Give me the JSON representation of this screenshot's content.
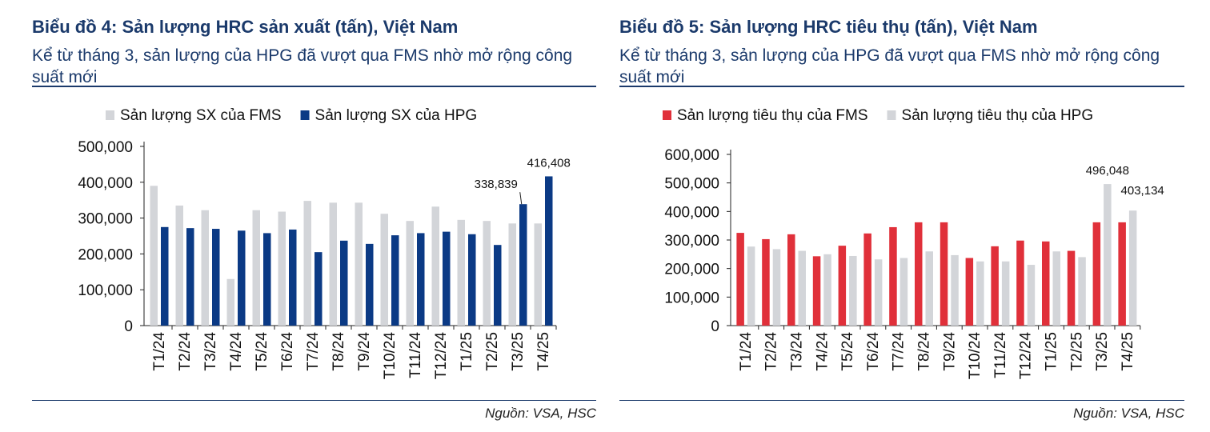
{
  "charts": [
    {
      "title": "Biểu đồ 4: Sản lượng HRC sản xuất (tấn), Việt Nam",
      "subtitle": "Kể từ tháng 3, sản lượng của HPG đã vượt qua FMS nhờ mở rộng công suất mới",
      "source": "Nguồn: VSA, HSC"
    },
    {
      "title": "Biểu đồ 5: Sản lượng HRC tiêu thụ (tấn), Việt Nam",
      "subtitle": "Kể từ tháng 3, sản lượng của HPG đã vượt qua FMS nhờ mở rộng công suất mới",
      "source": "Nguồn: VSA, HSC"
    }
  ],
  "chart_data": [
    {
      "type": "bar",
      "title": "Biểu đồ 4: Sản lượng HRC sản xuất (tấn), Việt Nam",
      "xlabel": "",
      "ylabel": "",
      "ylim": [
        0,
        500000
      ],
      "yticks": [
        "0",
        "100,000",
        "200,000",
        "300,000",
        "400,000",
        "500,000"
      ],
      "grid": false,
      "legend_position": "top",
      "categories": [
        "T1/24",
        "T2/24",
        "T3/24",
        "T4/24",
        "T5/24",
        "T6/24",
        "T7/24",
        "T8/24",
        "T9/24",
        "T10/24",
        "T11/24",
        "T12/24",
        "T1/25",
        "T2/25",
        "T3/25",
        "T4/25"
      ],
      "series": [
        {
          "name": "Sản lượng SX của FMS",
          "color": "#d3d5d9",
          "values": [
            390000,
            335000,
            322000,
            130000,
            322000,
            318000,
            348000,
            343000,
            343000,
            312000,
            292000,
            332000,
            295000,
            292000,
            285000,
            285000
          ]
        },
        {
          "name": "Sản lượng SX của HPG",
          "color": "#0b3a85",
          "values": [
            275000,
            272000,
            270000,
            265000,
            258000,
            268000,
            205000,
            237000,
            228000,
            252000,
            258000,
            262000,
            255000,
            225000,
            338839,
            416408
          ]
        }
      ],
      "annotations": [
        {
          "text": "338,839",
          "series": 1,
          "category": "T3/25",
          "leader": true
        },
        {
          "text": "416,408",
          "series": 1,
          "category": "T4/25",
          "leader": false
        }
      ]
    },
    {
      "type": "bar",
      "title": "Biểu đồ 5: Sản lượng HRC tiêu thụ (tấn), Việt Nam",
      "xlabel": "",
      "ylabel": "",
      "ylim": [
        0,
        600000
      ],
      "yticks": [
        "0",
        "100,000",
        "200,000",
        "300,000",
        "400,000",
        "500,000",
        "600,000"
      ],
      "grid": false,
      "legend_position": "top",
      "categories": [
        "T1/24",
        "T2/24",
        "T3/24",
        "T4/24",
        "T5/24",
        "T6/24",
        "T7/24",
        "T8/24",
        "T9/24",
        "T10/24",
        "T11/24",
        "T12/24",
        "T1/25",
        "T2/25",
        "T3/25",
        "T4/25"
      ],
      "series": [
        {
          "name": "Sản lượng tiêu thụ của FMS",
          "color": "#e0303a",
          "values": [
            325000,
            303000,
            320000,
            243000,
            280000,
            323000,
            345000,
            362000,
            362000,
            237000,
            278000,
            298000,
            295000,
            262000,
            362000,
            362000
          ]
        },
        {
          "name": "Sản lượng tiêu thụ của HPG",
          "color": "#d3d5d9",
          "values": [
            277000,
            268000,
            262000,
            250000,
            244000,
            232000,
            237000,
            260000,
            247000,
            225000,
            225000,
            213000,
            260000,
            240000,
            496048,
            403134
          ]
        }
      ],
      "annotations": [
        {
          "text": "496,048",
          "series": 1,
          "category": "T3/25",
          "leader": false
        },
        {
          "text": "403,134",
          "series": 1,
          "category": "T4/25",
          "leader": false
        }
      ]
    }
  ]
}
